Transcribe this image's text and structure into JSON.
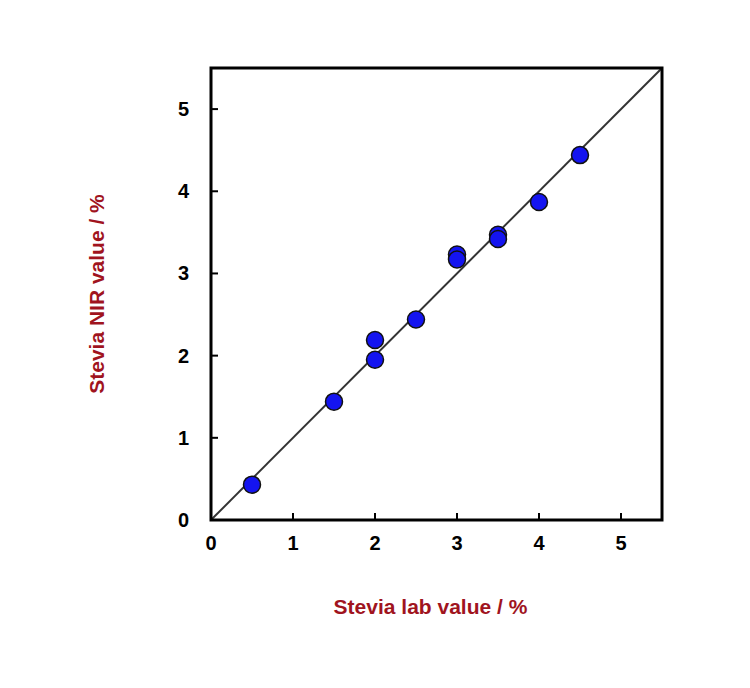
{
  "chart_data": {
    "type": "scatter",
    "x_label": "Stevia lab value / %",
    "y_label": "Stevia NIR value / %",
    "x": [
      0.5,
      1.5,
      2,
      2,
      2.5,
      3,
      3,
      3.5,
      3.5,
      4,
      4.5
    ],
    "values": [
      0.43,
      1.44,
      2.19,
      1.95,
      2.44,
      3.23,
      3.17,
      3.47,
      3.42,
      3.87,
      4.44
    ],
    "color": "#1414f0",
    "marker": "circle",
    "xlim": [
      0,
      5.5
    ],
    "ylim": [
      0,
      5.5
    ],
    "xticks": [
      0,
      1,
      2,
      3,
      4,
      5
    ],
    "yticks": [
      0,
      1,
      2,
      3,
      4,
      5
    ],
    "grid": false
  }
}
